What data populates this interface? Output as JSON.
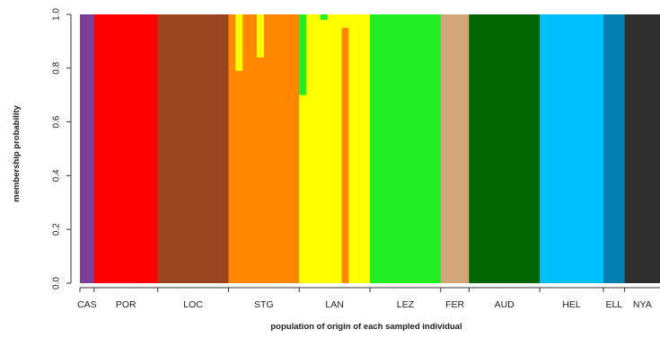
{
  "chart_data": {
    "type": "bar",
    "subtype": "stacked-membership-barplot",
    "title": "",
    "xlabel": "population of origin of each sampled individual",
    "ylabel": "membership probability",
    "ylim": [
      0,
      1
    ],
    "y_ticks": [
      "0.0",
      "0.2",
      "0.4",
      "0.6",
      "0.8",
      "1.0"
    ],
    "grid": false,
    "legend": "none",
    "clusters": [
      {
        "name": "CAS",
        "color": "#7b3f98"
      },
      {
        "name": "POR",
        "color": "#ff0000"
      },
      {
        "name": "LOC",
        "color": "#9b4520"
      },
      {
        "name": "STG",
        "color": "#ff8800"
      },
      {
        "name": "LAN",
        "color": "#ffff00"
      },
      {
        "name": "LEZ",
        "color": "#22ee22"
      },
      {
        "name": "FER",
        "color": "#d2a679"
      },
      {
        "name": "AUD",
        "color": "#006400"
      },
      {
        "name": "HEL",
        "color": "#00bfff"
      },
      {
        "name": "ELL",
        "color": "#0080b0"
      },
      {
        "name": "NYA",
        "color": "#2f2f2f"
      }
    ],
    "populations": [
      {
        "label": "CAS",
        "start": 0,
        "n": 2,
        "cluster": "CAS"
      },
      {
        "label": "POR",
        "start": 2,
        "n": 9,
        "cluster": "POR"
      },
      {
        "label": "LOC",
        "start": 11,
        "n": 10,
        "cluster": "LOC"
      },
      {
        "label": "STG",
        "start": 21,
        "n": 10,
        "cluster": "STG"
      },
      {
        "label": "LAN",
        "start": 31,
        "n": 10,
        "cluster": "LAN"
      },
      {
        "label": "LEZ",
        "start": 41,
        "n": 10,
        "cluster": "LEZ"
      },
      {
        "label": "FER",
        "start": 51,
        "n": 4,
        "cluster": "FER"
      },
      {
        "label": "AUD",
        "start": 55,
        "n": 10,
        "cluster": "AUD"
      },
      {
        "label": "HEL",
        "start": 65,
        "n": 9,
        "cluster": "HEL"
      },
      {
        "label": "ELL",
        "start": 74,
        "n": 3,
        "cluster": "ELL"
      },
      {
        "label": "NYA",
        "start": 77,
        "n": 5,
        "cluster": "NYA"
      }
    ],
    "n_individuals": 82,
    "admixed_individuals": [
      {
        "index": 22,
        "segments": [
          {
            "cluster": "STG",
            "value": 0.79
          },
          {
            "cluster": "LAN",
            "value": 0.21
          }
        ]
      },
      {
        "index": 25,
        "segments": [
          {
            "cluster": "STG",
            "value": 0.84
          },
          {
            "cluster": "LAN",
            "value": 0.16
          }
        ]
      },
      {
        "index": 31,
        "segments": [
          {
            "cluster": "LAN",
            "value": 0.7
          },
          {
            "cluster": "LEZ",
            "value": 0.3
          }
        ]
      },
      {
        "index": 34,
        "segments": [
          {
            "cluster": "LAN",
            "value": 0.98
          },
          {
            "cluster": "LEZ",
            "value": 0.02
          }
        ]
      },
      {
        "index": 37,
        "segments": [
          {
            "cluster": "STG",
            "value": 0.95
          },
          {
            "cluster": "LAN",
            "value": 0.05
          }
        ]
      }
    ]
  }
}
